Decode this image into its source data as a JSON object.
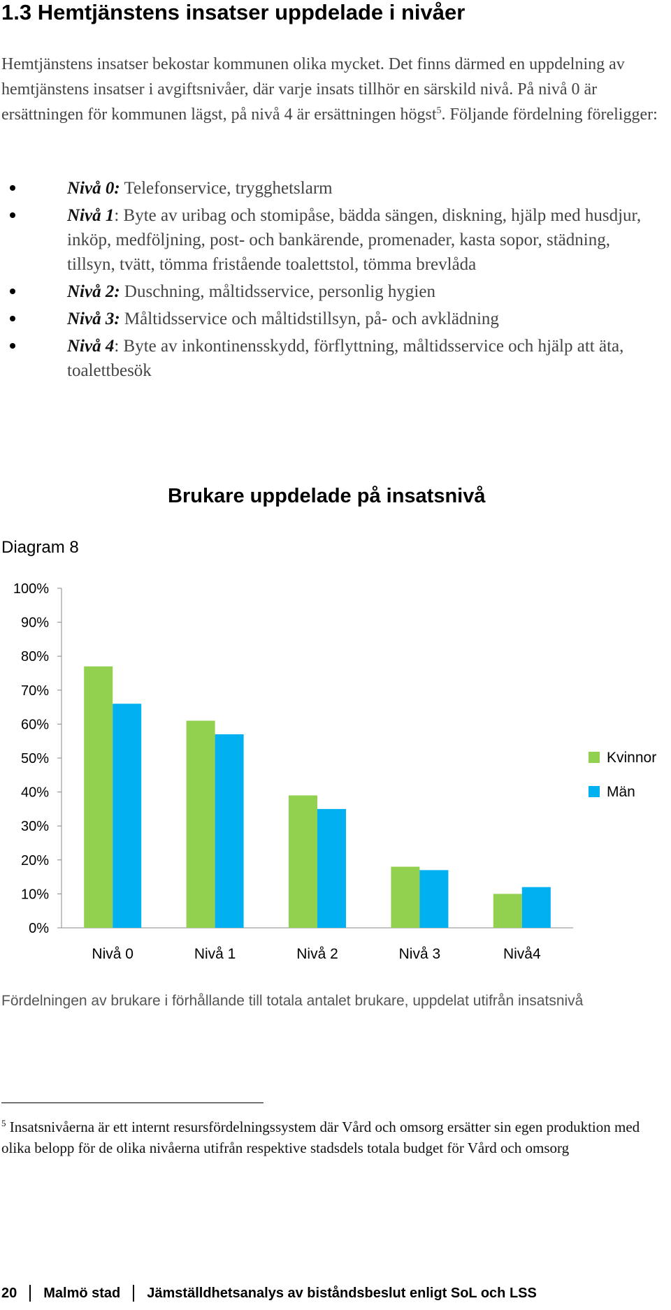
{
  "heading": "1.3 Hemtjänstens insatser uppdelade i nivåer",
  "intro": {
    "text": "Hemtjänstens insatser bekostar kommunen olika mycket. Det finns därmed en uppdelning av hemtjänstens insatser i avgiftsnivåer, där varje insats tillhör en särskild nivå. På nivå 0 är ersättningen för kommunen lägst, på nivå 4 är ersättningen högst",
    "footnote_ref": "5",
    "text_after": ". Följande fördelning föreligger:"
  },
  "levels": [
    {
      "name": "Nivå 0:",
      "text": " Telefonservice, trygghetslarm"
    },
    {
      "name": "Nivå 1",
      "text": ": Byte av uribag och stomipåse, bädda sängen, diskning, hjälp med husdjur, inköp, medföljning, post- och bankärende, promenader, kasta sopor, städning, tillsyn, tvätt, tömma fristående toalettstol, tömma brevlåda"
    },
    {
      "name": "Nivå 2:",
      "text": " Duschning, måltidsservice, personlig hygien"
    },
    {
      "name": "Nivå 3:",
      "text": " Måltidsservice och måltidstillsyn, på- och avklädning"
    },
    {
      "name": "Nivå 4",
      "text": ": Byte av inkontinensskydd, förflyttning, måltidsservice och hjälp att äta, toalettbesök"
    }
  ],
  "chart_title": "Brukare uppdelade på insatsnivå",
  "diagram_label": "Diagram 8",
  "chart_data": {
    "type": "bar",
    "categories": [
      "Nivå 0",
      "Nivå 1",
      "Nivå 2",
      "Nivå 3",
      "Nivå4"
    ],
    "series": [
      {
        "name": "Kvinnor",
        "values": [
          77,
          61,
          39,
          18,
          10
        ],
        "color": "#92d050"
      },
      {
        "name": "Män",
        "values": [
          66,
          57,
          35,
          17,
          12
        ],
        "color": "#00b0f0"
      }
    ],
    "y_ticks": [
      "0%",
      "10%",
      "20%",
      "30%",
      "40%",
      "50%",
      "60%",
      "70%",
      "80%",
      "90%",
      "100%"
    ],
    "ylim": [
      0,
      100
    ],
    "legend_position": "right",
    "grid": false
  },
  "caption": "Fördelningen av brukare i förhållande till totala antalet brukare, uppdelat utifrån insatsnivå",
  "footnote": {
    "number": "5",
    "text": " Insatsnivåerna är ett internt resursfördelningssystem där Vård och omsorg ersätter sin egen produktion med olika belopp för de olika nivåerna utifrån respektive stadsdels totala budget för Vård och omsorg"
  },
  "footer": {
    "page": "20",
    "org": "Malmö stad",
    "title": "Jämställdhetsanalys av biståndsbeslut enligt SoL och LSS"
  }
}
